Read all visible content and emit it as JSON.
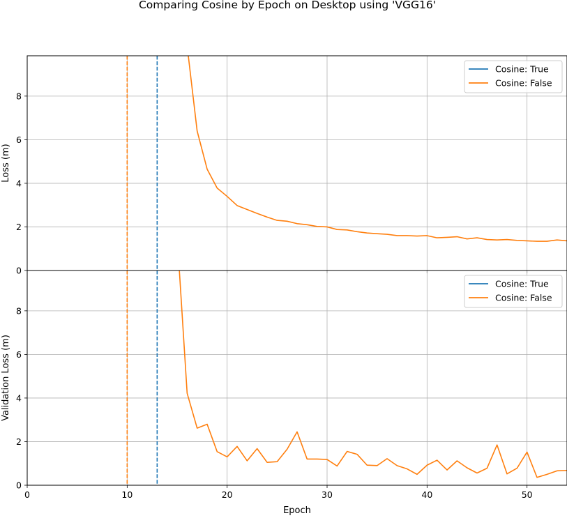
{
  "figure": {
    "title": "Comparing Cosine by Epoch on Desktop using 'VGG16'"
  },
  "colors": {
    "series_true": "#1f77b4",
    "series_false": "#ff7f0e",
    "grid": "#b0b0b0",
    "axis": "#000000"
  },
  "chart_data": [
    {
      "type": "line",
      "panel": "top",
      "ylabel": "Loss (m)",
      "xlabel": "",
      "xlim": [
        0,
        54
      ],
      "ylim": [
        0,
        9.85
      ],
      "xticks": [
        0,
        10,
        20,
        30,
        40,
        50
      ],
      "yticks": [
        0,
        2,
        4,
        6,
        8
      ],
      "grid": true,
      "legend_position": "upper right",
      "legend": [
        "Cosine: True",
        "Cosine: False"
      ],
      "vlines": [
        {
          "series": "Cosine: True",
          "x": 13,
          "style": "dashed"
        },
        {
          "series": "Cosine: False",
          "x": 10,
          "style": "dashed"
        }
      ],
      "series": [
        {
          "name": "Cosine: True",
          "x": [],
          "y": []
        },
        {
          "name": "Cosine: False",
          "x": [
            16,
            17,
            18,
            19,
            20,
            21,
            22,
            23,
            24,
            25,
            26,
            27,
            28,
            29,
            30,
            31,
            32,
            33,
            34,
            35,
            36,
            37,
            38,
            39,
            40,
            41,
            42,
            43,
            44,
            45,
            46,
            47,
            48,
            49,
            50,
            51,
            52,
            53,
            54
          ],
          "y": [
            10.3,
            6.4,
            4.65,
            3.78,
            3.4,
            2.98,
            2.8,
            2.62,
            2.45,
            2.3,
            2.26,
            2.15,
            2.1,
            2.02,
            2.0,
            1.88,
            1.86,
            1.78,
            1.72,
            1.69,
            1.66,
            1.6,
            1.6,
            1.58,
            1.6,
            1.5,
            1.52,
            1.55,
            1.45,
            1.5,
            1.42,
            1.4,
            1.42,
            1.38,
            1.36,
            1.34,
            1.34,
            1.4,
            1.36
          ]
        }
      ]
    },
    {
      "type": "line",
      "panel": "bottom",
      "ylabel": "Validation Loss (m)",
      "xlabel": "Epoch",
      "xlim": [
        0,
        54
      ],
      "ylim": [
        0,
        9.85
      ],
      "xticks": [
        0,
        10,
        20,
        30,
        40,
        50
      ],
      "yticks": [
        0,
        2,
        4,
        6,
        8
      ],
      "grid": true,
      "legend_position": "upper right",
      "legend": [
        "Cosine: True",
        "Cosine: False"
      ],
      "vlines": [
        {
          "series": "Cosine: True",
          "x": 13,
          "style": "dashed"
        },
        {
          "series": "Cosine: False",
          "x": 10,
          "style": "dashed"
        }
      ],
      "series": [
        {
          "name": "Cosine: True",
          "x": [],
          "y": []
        },
        {
          "name": "Cosine: False",
          "x": [
            15.2,
            16,
            17,
            18,
            19,
            20,
            21,
            22,
            23,
            24,
            25,
            26,
            27,
            28,
            29,
            30,
            31,
            32,
            33,
            34,
            35,
            36,
            37,
            38,
            39,
            40,
            41,
            42,
            43,
            44,
            45,
            46,
            47,
            48,
            49,
            50,
            51,
            52,
            53,
            54
          ],
          "y": [
            10.0,
            4.22,
            2.62,
            2.8,
            1.54,
            1.3,
            1.78,
            1.12,
            1.68,
            1.05,
            1.08,
            1.65,
            2.45,
            1.2,
            1.2,
            1.18,
            0.88,
            1.55,
            1.42,
            0.92,
            0.9,
            1.22,
            0.9,
            0.75,
            0.5,
            0.92,
            1.15,
            0.7,
            1.12,
            0.8,
            0.56,
            0.78,
            1.85,
            0.52,
            0.78,
            1.52,
            0.36,
            0.5,
            0.66,
            0.68
          ]
        }
      ]
    }
  ]
}
